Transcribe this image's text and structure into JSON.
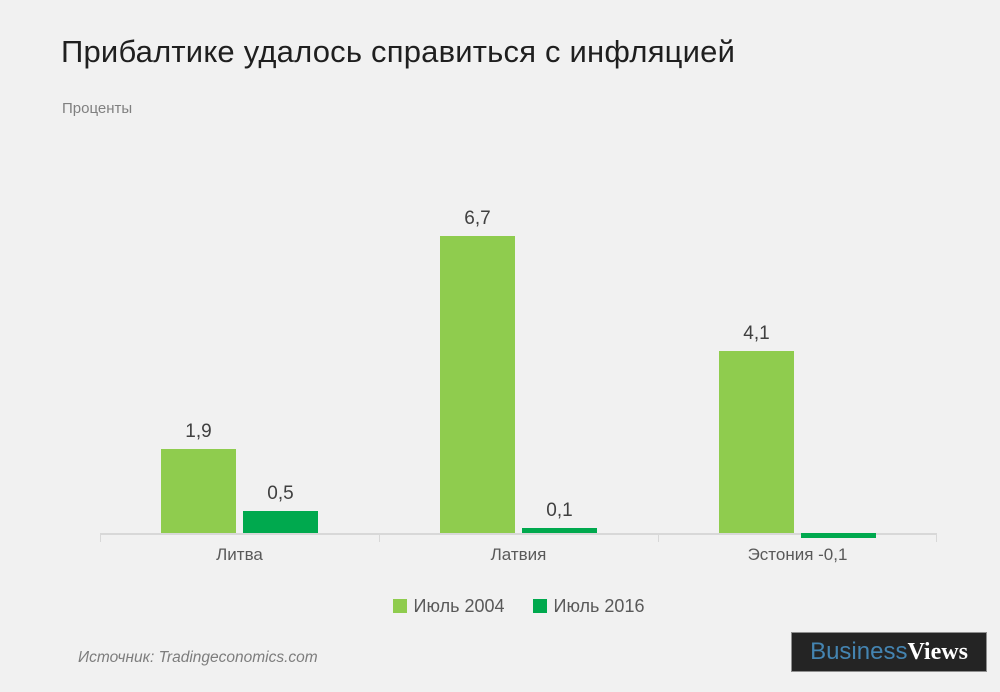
{
  "header": {
    "title": "Прибалтике удалось справиться с инфляцией",
    "subtitle": "Проценты"
  },
  "chart_data": {
    "type": "bar",
    "title": "Прибалтике удалось справиться с инфляцией",
    "ylabel": "Проценты",
    "categories": [
      "Литва",
      "Латвия",
      "Эстония"
    ],
    "category_axis_labels": [
      "Литва",
      "Латвия",
      "Эстония -0,1"
    ],
    "series": [
      {
        "name": "Июль 2004",
        "color": "#8FCC4E",
        "values": [
          1.9,
          6.7,
          4.1
        ],
        "value_labels": [
          "1,9",
          "6,7",
          "4,1"
        ]
      },
      {
        "name": "Июль 2016",
        "color": "#00A94E",
        "values": [
          0.5,
          0.1,
          -0.1
        ],
        "value_labels": [
          "0,5",
          "0,1",
          "-0,1"
        ]
      }
    ],
    "ylim": [
      -0.2,
      7.5
    ],
    "grid": false,
    "axis": "x-axis only, light gray, ticks at category boundaries",
    "legend_position": "bottom-center",
    "value_label_note": "negative value -0,1 shown inline after category label Эстония"
  },
  "footer": {
    "source": "Источник: Tradingeconomics.com",
    "logo": {
      "part1": "Business",
      "part2": "Views",
      "part1_color": "#4484B1",
      "part2_color": "#FFFFFF",
      "background": "#242424"
    }
  },
  "colors": {
    "page_background": "#F1F1F1",
    "axis_line": "#D8D8D8",
    "title_text": "#1F1F1F",
    "subtitle_text": "#808080",
    "category_label_text": "#595959",
    "value_label_text": "#404040",
    "legend_text": "#595959"
  }
}
